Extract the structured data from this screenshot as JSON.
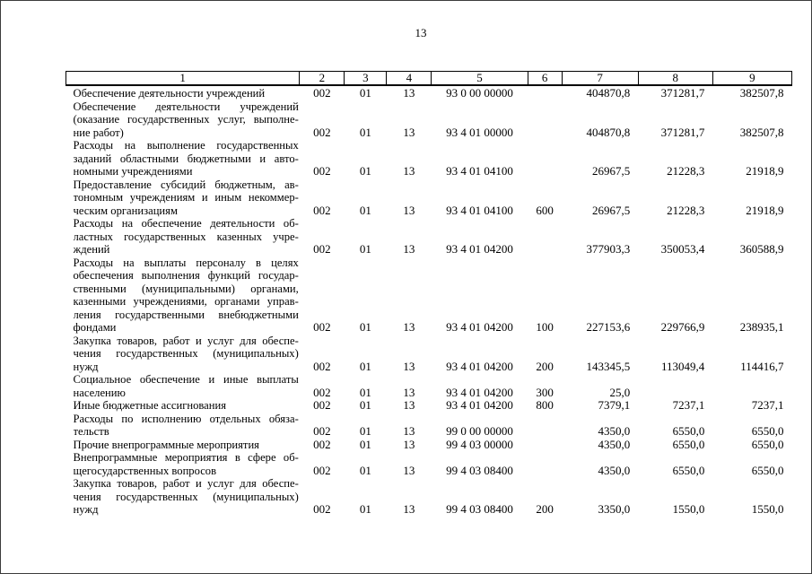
{
  "page": {
    "number": "13"
  },
  "table": {
    "header": [
      "1",
      "2",
      "3",
      "4",
      "5",
      "6",
      "7",
      "8",
      "9"
    ],
    "rows": [
      {
        "name_lines": [
          "Обеспечение деятельности учреждений"
        ],
        "c2": "002",
        "c3": "01",
        "c4": "13",
        "c5": "93 0 00 00000",
        "c6": "",
        "c7": "404870,8",
        "c8": "371281,7",
        "c9": "382507,8"
      },
      {
        "name_lines": [
          "Обеспечение деятельности учреждений",
          "(оказание государственных услуг, выполне-",
          "ние работ)"
        ],
        "c2": "002",
        "c3": "01",
        "c4": "13",
        "c5": "93 4 01 00000",
        "c6": "",
        "c7": "404870,8",
        "c8": "371281,7",
        "c9": "382507,8"
      },
      {
        "name_lines": [
          "Расходы на выполнение государственных",
          "заданий областными бюджетными и авто-",
          "номными учреждениями"
        ],
        "c2": "002",
        "c3": "01",
        "c4": "13",
        "c5": "93 4 01 04100",
        "c6": "",
        "c7": "26967,5",
        "c8": "21228,3",
        "c9": "21918,9"
      },
      {
        "name_lines": [
          "Предоставление субсидий бюджетным, ав-",
          "тономным учреждениям и иным некоммер-",
          "ческим организациям"
        ],
        "c2": "002",
        "c3": "01",
        "c4": "13",
        "c5": "93 4 01 04100",
        "c6": "600",
        "c7": "26967,5",
        "c8": "21228,3",
        "c9": "21918,9"
      },
      {
        "name_lines": [
          "Расходы на обеспечение деятельности об-",
          "ластных государственных казенных учре-",
          "ждений"
        ],
        "c2": "002",
        "c3": "01",
        "c4": "13",
        "c5": "93 4 01 04200",
        "c6": "",
        "c7": "377903,3",
        "c8": "350053,4",
        "c9": "360588,9"
      },
      {
        "name_lines": [
          "Расходы на выплаты персоналу в целях",
          "обеспечения выполнения функций государ-",
          "ственными (муниципальными) органами,",
          "казенными учреждениями, органами управ-",
          "ления государственными внебюджетными",
          "фондами"
        ],
        "c2": "002",
        "c3": "01",
        "c4": "13",
        "c5": "93 4 01 04200",
        "c6": "100",
        "c7": "227153,6",
        "c8": "229766,9",
        "c9": "238935,1"
      },
      {
        "name_lines": [
          "Закупка товаров, работ и услуг для обеспе-",
          "чения государственных (муниципальных)",
          "нужд"
        ],
        "c2": "002",
        "c3": "01",
        "c4": "13",
        "c5": "93 4 01 04200",
        "c6": "200",
        "c7": "143345,5",
        "c8": "113049,4",
        "c9": "114416,7"
      },
      {
        "name_lines": [
          "Социальное обеспечение и иные выплаты",
          "населению"
        ],
        "c2": "002",
        "c3": "01",
        "c4": "13",
        "c5": "93 4 01 04200",
        "c6": "300",
        "c7": "25,0",
        "c8": "",
        "c9": ""
      },
      {
        "name_lines": [
          "Иные бюджетные ассигнования"
        ],
        "c2": "002",
        "c3": "01",
        "c4": "13",
        "c5": "93 4 01 04200",
        "c6": "800",
        "c7": "7379,1",
        "c8": "7237,1",
        "c9": "7237,1"
      },
      {
        "name_lines": [
          "Расходы по исполнению отдельных обяза-",
          "тельств"
        ],
        "c2": "002",
        "c3": "01",
        "c4": "13",
        "c5": "99 0 00 00000",
        "c6": "",
        "c7": "4350,0",
        "c8": "6550,0",
        "c9": "6550,0"
      },
      {
        "name_lines": [
          "Прочие внепрограммные мероприятия"
        ],
        "c2": "002",
        "c3": "01",
        "c4": "13",
        "c5": "99 4 03 00000",
        "c6": "",
        "c7": "4350,0",
        "c8": "6550,0",
        "c9": "6550,0"
      },
      {
        "name_lines": [
          "Внепрограммные мероприятия в сфере об-",
          "щегосударственных вопросов"
        ],
        "c2": "002",
        "c3": "01",
        "c4": "13",
        "c5": "99 4 03 08400",
        "c6": "",
        "c7": "4350,0",
        "c8": "6550,0",
        "c9": "6550,0"
      },
      {
        "name_lines": [
          "Закупка товаров, работ и услуг для обеспе-",
          "чения государственных (муниципальных)",
          "нужд"
        ],
        "c2": "002",
        "c3": "01",
        "c4": "13",
        "c5": "99 4 03 08400",
        "c6": "200",
        "c7": "3350,0",
        "c8": "1550,0",
        "c9": "1550,0"
      }
    ]
  }
}
